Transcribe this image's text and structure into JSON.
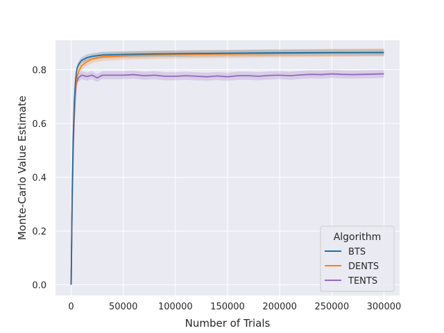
{
  "chart_data": {
    "type": "line",
    "title": "",
    "xlabel": "Number of Trials",
    "ylabel": "Monte-Carlo Value Estimate",
    "xlim": [
      -15000,
      315000
    ],
    "ylim": [
      -0.04,
      0.91
    ],
    "xticks": [
      0,
      50000,
      100000,
      150000,
      200000,
      250000,
      300000
    ],
    "xtick_labels": [
      "0",
      "50000",
      "100000",
      "150000",
      "200000",
      "250000",
      "300000"
    ],
    "yticks": [
      0.0,
      0.2,
      0.4,
      0.6,
      0.8
    ],
    "ytick_labels": [
      "0.0",
      "0.2",
      "0.4",
      "0.6",
      "0.8"
    ],
    "grid": true,
    "background": "#eaeaf2",
    "legend": {
      "title": "Algorithm",
      "placement": "lower-right"
    },
    "series": [
      {
        "name": "BTS",
        "color": "#1f6fa5",
        "band": 0.012,
        "x": [
          0,
          1000,
          2000,
          3000,
          4000,
          5000,
          6000,
          8000,
          10000,
          15000,
          20000,
          30000,
          50000,
          75000,
          100000,
          150000,
          200000,
          250000,
          300000
        ],
        "y": [
          0.0,
          0.35,
          0.55,
          0.68,
          0.75,
          0.79,
          0.81,
          0.825,
          0.835,
          0.845,
          0.85,
          0.855,
          0.857,
          0.859,
          0.86,
          0.862,
          0.863,
          0.864,
          0.864
        ]
      },
      {
        "name": "DENTS",
        "color": "#ff7f0e",
        "band": 0.015,
        "x": [
          0,
          1000,
          2000,
          3000,
          4000,
          5000,
          6000,
          8000,
          10000,
          15000,
          20000,
          30000,
          50000,
          75000,
          100000,
          150000,
          200000,
          250000,
          300000
        ],
        "y": [
          0.0,
          0.32,
          0.52,
          0.65,
          0.72,
          0.76,
          0.78,
          0.8,
          0.815,
          0.83,
          0.84,
          0.848,
          0.852,
          0.855,
          0.857,
          0.859,
          0.861,
          0.863,
          0.865
        ]
      },
      {
        "name": "TENTS",
        "color": "#9467bd",
        "band": 0.015,
        "x": [
          0,
          1000,
          2000,
          3000,
          4000,
          5000,
          7000,
          10000,
          15000,
          20000,
          25000,
          30000,
          40000,
          50000,
          60000,
          70000,
          80000,
          90000,
          100000,
          110000,
          120000,
          130000,
          140000,
          150000,
          160000,
          170000,
          180000,
          190000,
          200000,
          210000,
          220000,
          230000,
          240000,
          250000,
          260000,
          270000,
          280000,
          290000,
          300000
        ],
        "y": [
          0.0,
          0.3,
          0.5,
          0.62,
          0.7,
          0.75,
          0.77,
          0.78,
          0.775,
          0.78,
          0.77,
          0.78,
          0.78,
          0.78,
          0.782,
          0.778,
          0.78,
          0.776,
          0.776,
          0.778,
          0.776,
          0.774,
          0.777,
          0.774,
          0.778,
          0.778,
          0.776,
          0.779,
          0.78,
          0.778,
          0.781,
          0.783,
          0.782,
          0.785,
          0.783,
          0.782,
          0.783,
          0.784,
          0.785
        ]
      }
    ]
  }
}
